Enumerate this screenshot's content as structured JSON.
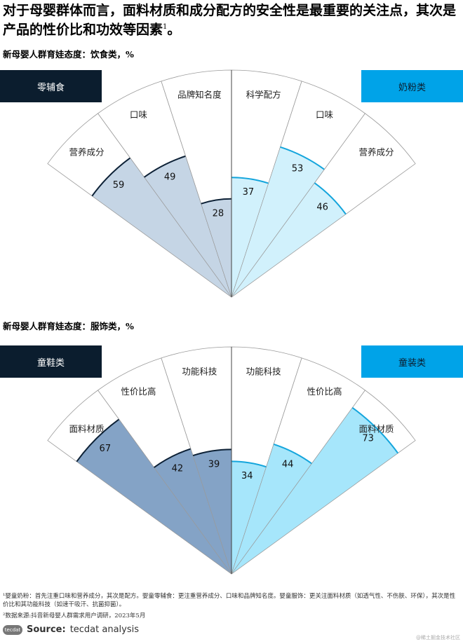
{
  "title": "对于母婴群体而言，面料材质和成分配方的安全性是最重要的关注点，其次是产品的性价比和功效等因素",
  "title_sup": "1",
  "title_end": "。",
  "chart_data": [
    {
      "type": "radial-bar",
      "title": "新母婴人群育娃态度：饮食类，%",
      "left": {
        "category": "零辅食",
        "box_color": "#0b1d2e",
        "fill": "#c5d5e5",
        "arc": "#0d2136",
        "items": [
          {
            "label": "营养成分",
            "value": 59
          },
          {
            "label": "口味",
            "value": 49
          },
          {
            "label": "品牌知名度",
            "value": 28
          }
        ]
      },
      "right": {
        "category": "奶粉类",
        "box_color": "#00a3e8",
        "fill": "#d1f1fc",
        "arc": "#14a5dc",
        "items": [
          {
            "label": "科学配方",
            "value": 37
          },
          {
            "label": "口味",
            "value": 53
          },
          {
            "label": "营养成分",
            "value": 46
          }
        ]
      }
    },
    {
      "type": "radial-bar",
      "title": "新母婴人群育娃态度：服饰类，%",
      "left": {
        "category": "童鞋类",
        "box_color": "#0b1d2e",
        "fill": "#84a3c6",
        "arc": "#0d2136",
        "items": [
          {
            "label": "面料材质",
            "value": 67
          },
          {
            "label": "性价比高",
            "value": 42
          },
          {
            "label": "功能科技",
            "value": 39
          }
        ]
      },
      "right": {
        "category": "童装类",
        "box_color": "#00a3e8",
        "fill": "#a6e6fb",
        "arc": "#14a5dc",
        "items": [
          {
            "label": "功能科技",
            "value": 34
          },
          {
            "label": "性价比高",
            "value": 44
          },
          {
            "label": "面料材质",
            "value": 73
          }
        ]
      }
    }
  ],
  "footnotes": [
    "¹婴童奶粉：首先注重口味和营养成分，其次是配方。婴童零辅食：更注重营养成分、口味和品牌知名度。婴童服饰：更关注面料材质（如透气性、不伤肤、环保），其次是性价比和其功能科技（如速干吸汗、抗菌抑菌）。",
    "²数据来源:抖音新母婴人群需求用户调研，2023年5月"
  ],
  "source": {
    "logo": "tecdat",
    "label": "Source:",
    "text": "tecdat analysis"
  },
  "watermark": "@稀土掘金技术社区"
}
